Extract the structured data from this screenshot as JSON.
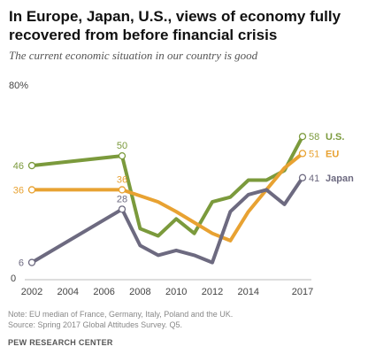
{
  "title": "In Europe, Japan, U.S., views of economy fully recovered from before financial crisis",
  "subtitle": "The current economic situation in our country is good",
  "notes": [
    "Note: EU median of France, Germany, Italy, Poland and the UK.",
    "Source: Spring 2017 Global Attitudes Survey. Q5."
  ],
  "source_org": "PEW RESEARCH CENTER",
  "chart_data": {
    "type": "line",
    "title": "In Europe, Japan, U.S., views of economy fully recovered from before financial crisis",
    "subtitle": "The current economic situation in our country is good",
    "xlabel": "",
    "ylabel": "",
    "xlim": [
      2002,
      2017
    ],
    "ylim": [
      0,
      80
    ],
    "x_ticks": [
      "2002",
      "2004",
      "2006",
      "2008",
      "2010",
      "2012",
      "2014",
      "2017"
    ],
    "y_top_label": "80%",
    "y_bottom_label": "0",
    "grid": false,
    "legend": "labels at line ends",
    "series": [
      {
        "name": "U.S.",
        "color": "#7b9a3c",
        "points": [
          [
            2002,
            46
          ],
          [
            2007,
            50
          ],
          [
            2008,
            20
          ],
          [
            2009,
            17
          ],
          [
            2010,
            24
          ],
          [
            2011,
            18
          ],
          [
            2012,
            31
          ],
          [
            2013,
            33
          ],
          [
            2014,
            40
          ],
          [
            2015,
            40
          ],
          [
            2016,
            44
          ],
          [
            2017,
            58
          ]
        ],
        "labeled": [
          {
            "x": 2002,
            "y": 46,
            "text": "46",
            "pos": "left"
          },
          {
            "x": 2007,
            "y": 50,
            "text": "50",
            "pos": "above"
          },
          {
            "x": 2017,
            "y": 58,
            "text": "58",
            "pos": "right",
            "name": "U.S."
          }
        ]
      },
      {
        "name": "EU",
        "color": "#e8a232",
        "points": [
          [
            2002,
            36
          ],
          [
            2007,
            36
          ],
          [
            2009,
            31
          ],
          [
            2010,
            27
          ],
          [
            2012,
            18
          ],
          [
            2013,
            15
          ],
          [
            2014,
            27
          ],
          [
            2015,
            36
          ],
          [
            2016,
            45
          ],
          [
            2017,
            51
          ]
        ],
        "labeled": [
          {
            "x": 2002,
            "y": 36,
            "text": "36",
            "pos": "left"
          },
          {
            "x": 2007,
            "y": 36,
            "text": "36",
            "pos": "above"
          },
          {
            "x": 2017,
            "y": 51,
            "text": "51",
            "pos": "right",
            "name": "EU"
          }
        ]
      },
      {
        "name": "Japan",
        "color": "#6d6a80",
        "points": [
          [
            2002,
            6
          ],
          [
            2007,
            28
          ],
          [
            2008,
            13
          ],
          [
            2009,
            9
          ],
          [
            2010,
            11
          ],
          [
            2011,
            9
          ],
          [
            2012,
            6
          ],
          [
            2013,
            27
          ],
          [
            2014,
            34
          ],
          [
            2015,
            36
          ],
          [
            2016,
            30
          ],
          [
            2017,
            41
          ]
        ],
        "labeled": [
          {
            "x": 2002,
            "y": 6,
            "text": "6",
            "pos": "left"
          },
          {
            "x": 2007,
            "y": 28,
            "text": "28",
            "pos": "above"
          },
          {
            "x": 2017,
            "y": 41,
            "text": "41",
            "pos": "right",
            "name": "Japan"
          }
        ]
      }
    ]
  }
}
